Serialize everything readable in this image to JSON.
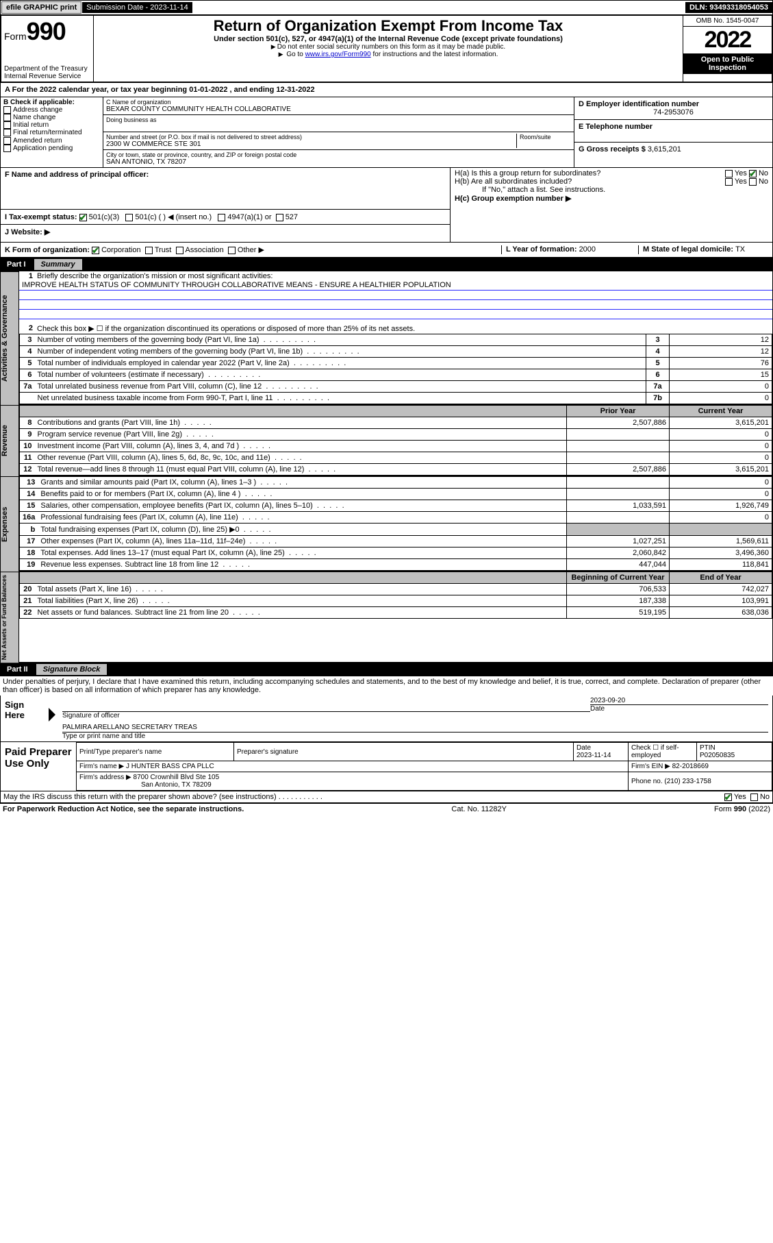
{
  "topbar": {
    "efile": "efile GRAPHIC print",
    "subdate_label": "Submission Date - ",
    "subdate": "2023-11-14",
    "dln_label": "DLN: ",
    "dln": "93493318054053"
  },
  "header": {
    "form_label": "Form",
    "form_num": "990",
    "dept": "Department of the Treasury Internal Revenue Service",
    "title": "Return of Organization Exempt From Income Tax",
    "sub": "Under section 501(c), 527, or 4947(a)(1) of the Internal Revenue Code (except private foundations)",
    "sub2a": "Do not enter social security numbers on this form as it may be made public.",
    "sub2b_pre": "Go to ",
    "sub2b_link": "www.irs.gov/Form990",
    "sub2b_post": " for instructions and the latest information.",
    "omb": "OMB No. 1545-0047",
    "year": "2022",
    "open": "Open to Public Inspection"
  },
  "lineA": {
    "text_pre": "For the 2022 calendar year, or tax year beginning ",
    "begin": "01-01-2022",
    "text_mid": " , and ending ",
    "end": "12-31-2022"
  },
  "boxB": {
    "label": "B Check if applicable:",
    "items": [
      "Address change",
      "Name change",
      "Initial return",
      "Final return/terminated",
      "Amended return",
      "Application pending"
    ]
  },
  "boxC": {
    "label_name": "C Name of organization",
    "name": "BEXAR COUNTY COMMUNITY HEALTH COLLABORATIVE",
    "dba_label": "Doing business as",
    "addr_label": "Number and street (or P.O. box if mail is not delivered to street address)",
    "room_label": "Room/suite",
    "addr": "2300 W COMMERCE STE 301",
    "city_label": "City or town, state or province, country, and ZIP or foreign postal code",
    "city": "SAN ANTONIO, TX  78207"
  },
  "boxD": {
    "label": "D Employer identification number",
    "val": "74-2953076"
  },
  "boxE": {
    "label": "E Telephone number",
    "val": ""
  },
  "boxG": {
    "label": "G Gross receipts $ ",
    "val": "3,615,201"
  },
  "boxF": {
    "label": "F  Name and address of principal officer:"
  },
  "boxH": {
    "a": "H(a)  Is this a group return for subordinates?",
    "b": "H(b)  Are all subordinates included?",
    "bnote": "If \"No,\" attach a list. See instructions.",
    "c": "H(c)  Group exemption number ▶",
    "yes": "Yes",
    "no": "No"
  },
  "boxI": {
    "label": "I  Tax-exempt status:",
    "opts": [
      "501(c)(3)",
      "501(c) ( ) ◀ (insert no.)",
      "4947(a)(1) or",
      "527"
    ]
  },
  "boxJ": {
    "label": "J  Website: ▶"
  },
  "boxK": {
    "label": "K Form of organization:",
    "opts": [
      "Corporation",
      "Trust",
      "Association",
      "Other ▶"
    ]
  },
  "boxL": {
    "label": "L Year of formation: ",
    "val": "2000"
  },
  "boxM": {
    "label": "M State of legal domicile: ",
    "val": "TX"
  },
  "part1": {
    "num": "Part I",
    "title": "Summary"
  },
  "summary": {
    "q1": "Briefly describe the organization's mission or most significant activities:",
    "mission": "IMPROVE HEALTH STATUS OF COMMUNITY THROUGH COLLABORATIVE MEANS - ENSURE A HEALTHIER POPULATION",
    "q2": "Check this box ▶ ☐  if the organization discontinued its operations or disposed of more than 25% of its net assets.",
    "rows_gov": [
      {
        "n": "3",
        "t": "Number of voting members of the governing body (Part VI, line 1a)",
        "box": "3",
        "v": "12"
      },
      {
        "n": "4",
        "t": "Number of independent voting members of the governing body (Part VI, line 1b)",
        "box": "4",
        "v": "12"
      },
      {
        "n": "5",
        "t": "Total number of individuals employed in calendar year 2022 (Part V, line 2a)",
        "box": "5",
        "v": "76"
      },
      {
        "n": "6",
        "t": "Total number of volunteers (estimate if necessary)",
        "box": "6",
        "v": "15"
      },
      {
        "n": "7a",
        "t": "Total unrelated business revenue from Part VIII, column (C), line 12",
        "box": "7a",
        "v": "0"
      },
      {
        "n": "",
        "t": "Net unrelated business taxable income from Form 990-T, Part I, line 11",
        "box": "7b",
        "v": "0"
      }
    ],
    "prior_label": "Prior Year",
    "current_label": "Current Year",
    "rows_rev": [
      {
        "n": "8",
        "t": "Contributions and grants (Part VIII, line 1h)",
        "p": "2,507,886",
        "c": "3,615,201"
      },
      {
        "n": "9",
        "t": "Program service revenue (Part VIII, line 2g)",
        "p": "",
        "c": "0"
      },
      {
        "n": "10",
        "t": "Investment income (Part VIII, column (A), lines 3, 4, and 7d )",
        "p": "",
        "c": "0"
      },
      {
        "n": "11",
        "t": "Other revenue (Part VIII, column (A), lines 5, 6d, 8c, 9c, 10c, and 11e)",
        "p": "",
        "c": "0"
      },
      {
        "n": "12",
        "t": "Total revenue—add lines 8 through 11 (must equal Part VIII, column (A), line 12)",
        "p": "2,507,886",
        "c": "3,615,201"
      }
    ],
    "rows_exp": [
      {
        "n": "13",
        "t": "Grants and similar amounts paid (Part IX, column (A), lines 1–3 )",
        "p": "",
        "c": "0"
      },
      {
        "n": "14",
        "t": "Benefits paid to or for members (Part IX, column (A), line 4 )",
        "p": "",
        "c": "0"
      },
      {
        "n": "15",
        "t": "Salaries, other compensation, employee benefits (Part IX, column (A), lines 5–10)",
        "p": "1,033,591",
        "c": "1,926,749"
      },
      {
        "n": "16a",
        "t": "Professional fundraising fees (Part IX, column (A), line 11e)",
        "p": "",
        "c": "0"
      },
      {
        "n": "b",
        "t": "Total fundraising expenses (Part IX, column (D), line 25) ▶0",
        "p": "shade",
        "c": "shade"
      },
      {
        "n": "17",
        "t": "Other expenses (Part IX, column (A), lines 11a–11d, 11f–24e)",
        "p": "1,027,251",
        "c": "1,569,611"
      },
      {
        "n": "18",
        "t": "Total expenses. Add lines 13–17 (must equal Part IX, column (A), line 25)",
        "p": "2,060,842",
        "c": "3,496,360"
      },
      {
        "n": "19",
        "t": "Revenue less expenses. Subtract line 18 from line 12",
        "p": "447,044",
        "c": "118,841"
      }
    ],
    "beg_label": "Beginning of Current Year",
    "end_label": "End of Year",
    "rows_net": [
      {
        "n": "20",
        "t": "Total assets (Part X, line 16)",
        "p": "706,533",
        "c": "742,027"
      },
      {
        "n": "21",
        "t": "Total liabilities (Part X, line 26)",
        "p": "187,338",
        "c": "103,991"
      },
      {
        "n": "22",
        "t": "Net assets or fund balances. Subtract line 21 from line 20",
        "p": "519,195",
        "c": "638,036"
      }
    ]
  },
  "vlabels": {
    "gov": "Activities & Governance",
    "rev": "Revenue",
    "exp": "Expenses",
    "net": "Net Assets or Fund Balances"
  },
  "part2": {
    "num": "Part II",
    "title": "Signature Block"
  },
  "sigtext": "Under penalties of perjury, I declare that I have examined this return, including accompanying schedules and statements, and to the best of my knowledge and belief, it is true, correct, and complete. Declaration of preparer (other than officer) is based on all information of which preparer has any knowledge.",
  "sign": {
    "here": "Sign Here",
    "sig_officer": "Signature of officer",
    "date": "Date",
    "sigdate": "2023-09-20",
    "name": "PALMIRA ARELLANO  SECRETARY TREAS",
    "name_label": "Type or print name and title"
  },
  "paid": {
    "label": "Paid Preparer Use Only",
    "h1": "Print/Type preparer's name",
    "h2": "Preparer's signature",
    "h3": "Date",
    "h3v": "2023-11-14",
    "h4": "Check ☐ if self-employed",
    "h5": "PTIN",
    "h5v": "P02050835",
    "firm_label": "Firm's name   ▶ ",
    "firm": "J HUNTER BASS CPA PLLC",
    "ein_label": "Firm's EIN ▶ ",
    "ein": "82-2018669",
    "addr_label": "Firm's address ▶ ",
    "addr1": "8700 Crownhill Blvd Ste 105",
    "addr2": "San Antonio, TX  78209",
    "phone_label": "Phone no. ",
    "phone": "(210) 233-1758"
  },
  "discuss": {
    "q": "May the IRS discuss this return with the preparer shown above? (see instructions)",
    "yes": "Yes",
    "no": "No"
  },
  "footer": {
    "left": "For Paperwork Reduction Act Notice, see the separate instructions.",
    "mid": "Cat. No. 11282Y",
    "right": "Form 990 (2022)"
  },
  "colors": {
    "blueline": "#2a2aff",
    "shade": "#bfbfbf",
    "check": "#1a7a1a"
  }
}
